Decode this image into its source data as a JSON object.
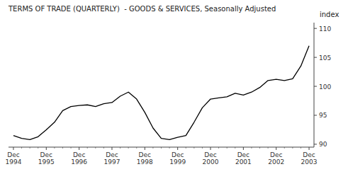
{
  "chart_data": {
    "type": "line",
    "title": "TERMS OF TRADE (QUARTERLY)  - GOODS & SERVICES, Seasonally Adjusted",
    "y_label": "index",
    "categories": [
      "Dec\n1994",
      null,
      null,
      null,
      "Dec\n1995",
      null,
      null,
      null,
      "Dec\n1996",
      null,
      null,
      null,
      "Dec\n1997",
      null,
      null,
      null,
      "Dec\n1998",
      null,
      null,
      null,
      "Dec\n1999",
      null,
      null,
      null,
      "Dec\n2000",
      null,
      null,
      null,
      "Dec\n2001",
      null,
      null,
      null,
      "Dec\n2002",
      null,
      null,
      null,
      "Dec\n2003"
    ],
    "values": [
      91.5,
      91.0,
      90.8,
      91.3,
      92.5,
      93.8,
      95.8,
      96.5,
      96.7,
      96.8,
      96.5,
      97.0,
      97.2,
      98.3,
      99.0,
      97.8,
      95.5,
      92.8,
      91.0,
      90.8,
      91.2,
      91.5,
      93.8,
      96.3,
      97.8,
      98.0,
      98.2,
      98.8,
      98.5,
      99.0,
      99.8,
      101.0,
      101.2,
      101.0,
      101.3,
      103.5,
      107.0
    ],
    "color": "#000000",
    "ylim": [
      89.5,
      111.0
    ],
    "yticks": [
      90,
      95,
      100,
      105,
      110
    ],
    "grid": false
  }
}
